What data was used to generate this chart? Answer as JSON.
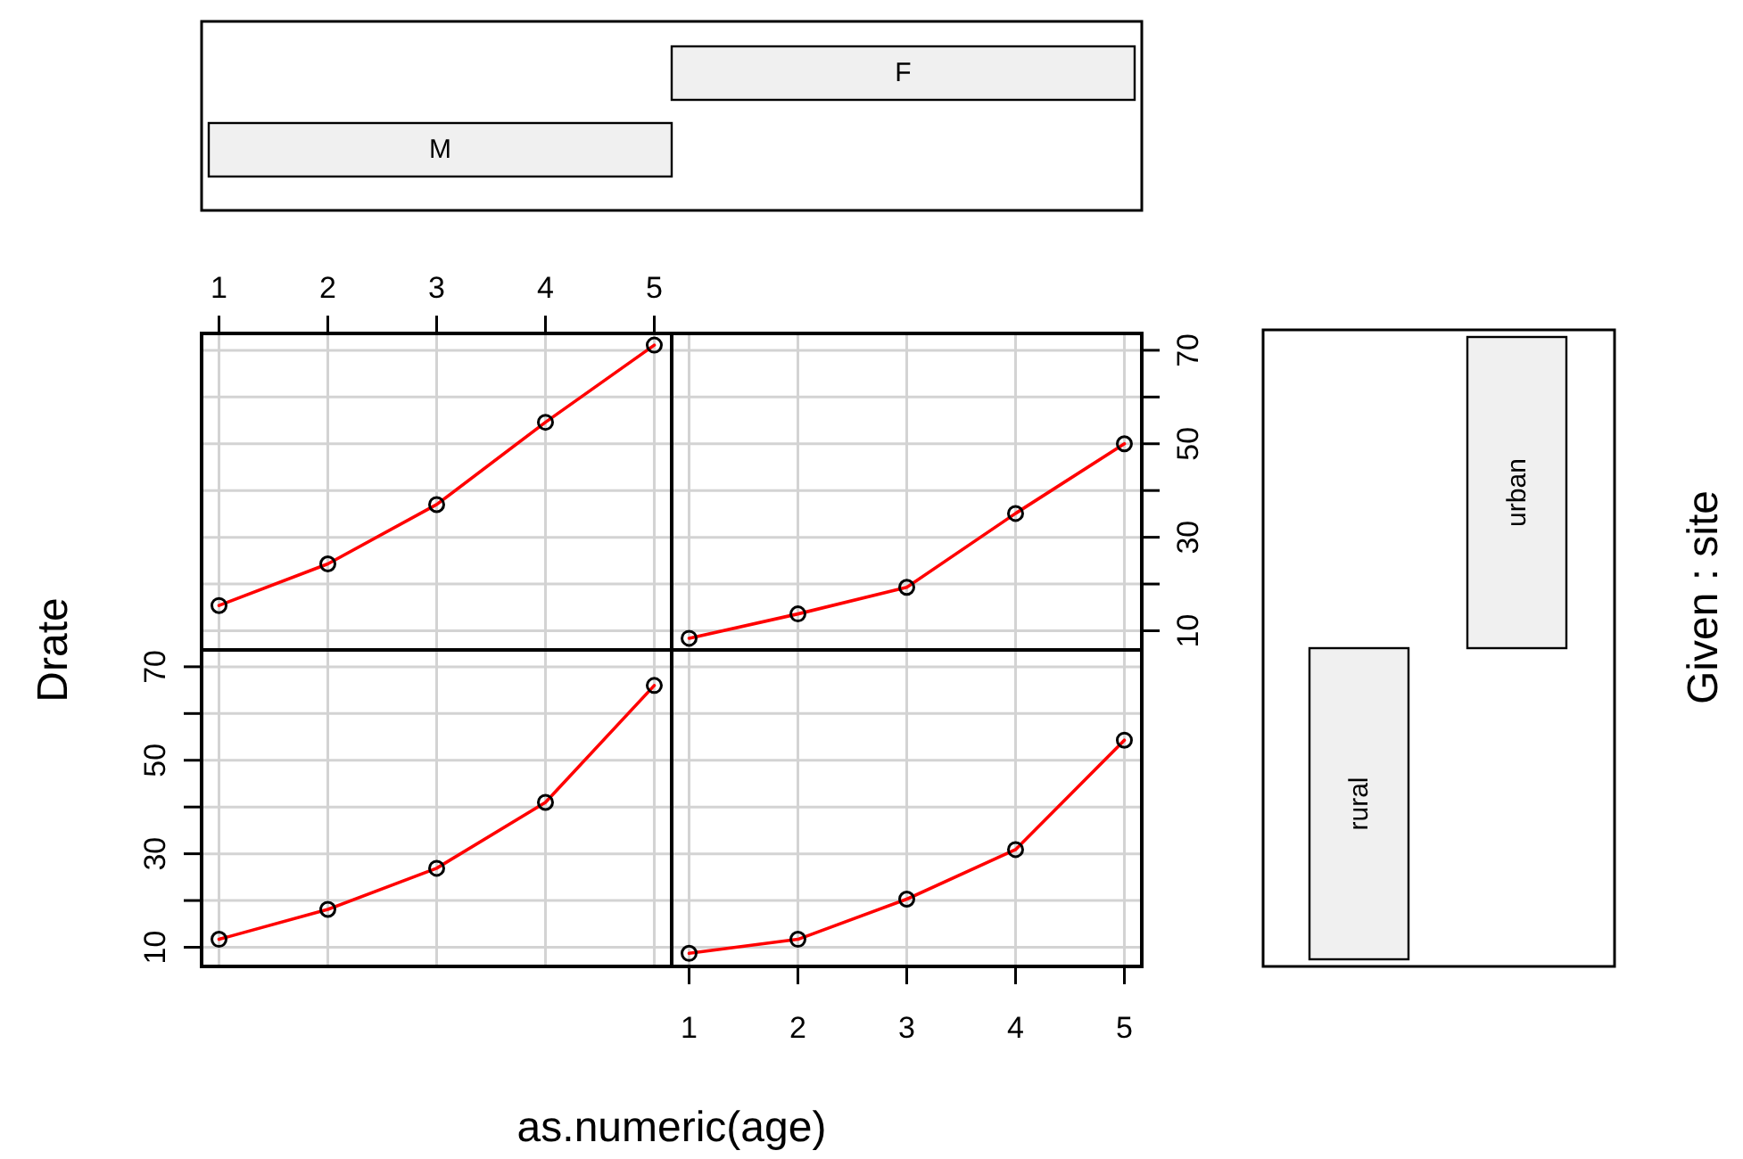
{
  "chart_data": [
    {
      "type": "other",
      "categories": [
        "M",
        "F"
      ]
    },
    {
      "type": "line",
      "xlim": [
        0.84,
        5.16
      ],
      "ylim": [
        5.9,
        73.6
      ],
      "xticks": [
        1,
        2,
        3,
        4,
        5
      ],
      "yticks": [
        10,
        {
          "value": 20,
          "label": null
        },
        30,
        {
          "value": 40,
          "label": null
        },
        50,
        {
          "value": 60,
          "label": null
        },
        70
      ],
      "tick_labels": "x",
      "grid": true,
      "marker": "circle",
      "x": [
        1,
        2,
        3,
        4,
        5
      ],
      "series": [
        {
          "color": "#ff0000",
          "values": [
            15.4,
            24.3,
            37.0,
            54.6,
            71.1
          ]
        }
      ]
    },
    {
      "type": "line",
      "xlim": [
        0.84,
        5.16
      ],
      "ylim": [
        5.9,
        73.6
      ],
      "xticks": [
        1,
        2,
        3,
        4,
        5
      ],
      "yticks": [
        10,
        {
          "value": 20,
          "label": null
        },
        30,
        {
          "value": 40,
          "label": null
        },
        50,
        {
          "value": 60,
          "label": null
        },
        70
      ],
      "tick_labels": "y",
      "grid": true,
      "marker": "circle",
      "x": [
        1,
        2,
        3,
        4,
        5
      ],
      "series": [
        {
          "color": "#ff0000",
          "values": [
            8.4,
            13.6,
            19.3,
            35.1,
            50.0
          ]
        }
      ]
    },
    {
      "type": "line",
      "ylabel": "Drate",
      "xlim": [
        0.84,
        5.16
      ],
      "ylim": [
        5.9,
        73.6
      ],
      "xticks": [
        1,
        2,
        3,
        4,
        5
      ],
      "yticks": [
        10,
        {
          "value": 20,
          "label": null
        },
        30,
        {
          "value": 40,
          "label": null
        },
        50,
        {
          "value": 60,
          "label": null
        },
        70
      ],
      "tick_labels": "y",
      "grid": true,
      "marker": "circle",
      "x": [
        1,
        2,
        3,
        4,
        5
      ],
      "series": [
        {
          "color": "#ff0000",
          "values": [
            11.7,
            18.1,
            26.9,
            41.0,
            66.0
          ]
        }
      ]
    },
    {
      "type": "line",
      "xlabel": "as.numeric(age)",
      "xlim": [
        0.84,
        5.16
      ],
      "ylim": [
        5.9,
        73.6
      ],
      "xticks": [
        1,
        2,
        3,
        4,
        5
      ],
      "yticks": [
        10,
        {
          "value": 20,
          "label": null
        },
        30,
        {
          "value": 40,
          "label": null
        },
        50,
        {
          "value": 60,
          "label": null
        },
        70
      ],
      "tick_labels": "x",
      "grid": true,
      "marker": "circle",
      "x": [
        1,
        2,
        3,
        4,
        5
      ],
      "series": [
        {
          "color": "#ff0000",
          "values": [
            8.7,
            11.7,
            20.3,
            30.9,
            54.3
          ]
        }
      ]
    },
    {
      "type": "other",
      "ylabel": "Given : site",
      "categories": [
        "rural",
        "urban"
      ]
    }
  ]
}
